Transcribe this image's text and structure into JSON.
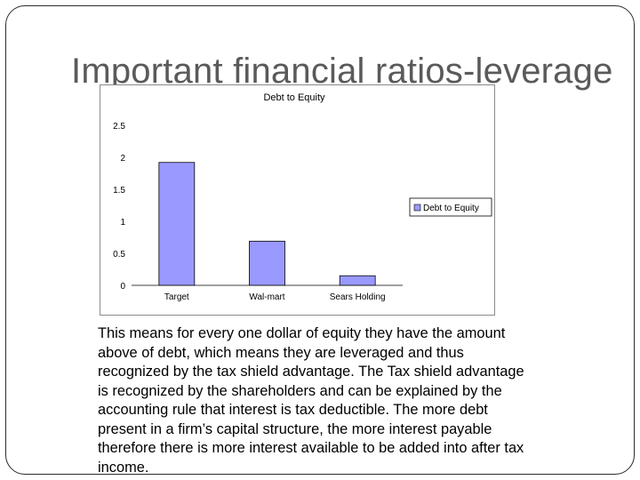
{
  "slide": {
    "title": "Important financial ratios-leverage",
    "body": "This means for every one dollar of equity they have the amount above of debt, which means they are leveraged and thus recognized by the tax shield advantage. The Tax shield advantage is recognized by the shareholders and can be explained by the accounting rule that interest is tax deductible. The more debt present in a firm’s capital structure, the more interest payable therefore there is more interest available to be added into after tax income."
  },
  "chart_data": {
    "type": "bar",
    "title": "Debt to Equity",
    "categories": [
      "Target",
      "Wal-mart",
      "Sears Holding"
    ],
    "series": [
      {
        "name": "Debt to Equity",
        "values": [
          1.92,
          0.69,
          0.15
        ],
        "color": "#9999ff"
      }
    ],
    "ylim": [
      0,
      2.5
    ],
    "yticks": [
      "0",
      "0.5",
      "1",
      "1.5",
      "2",
      "2.5"
    ],
    "grid": false,
    "legend": "right"
  }
}
